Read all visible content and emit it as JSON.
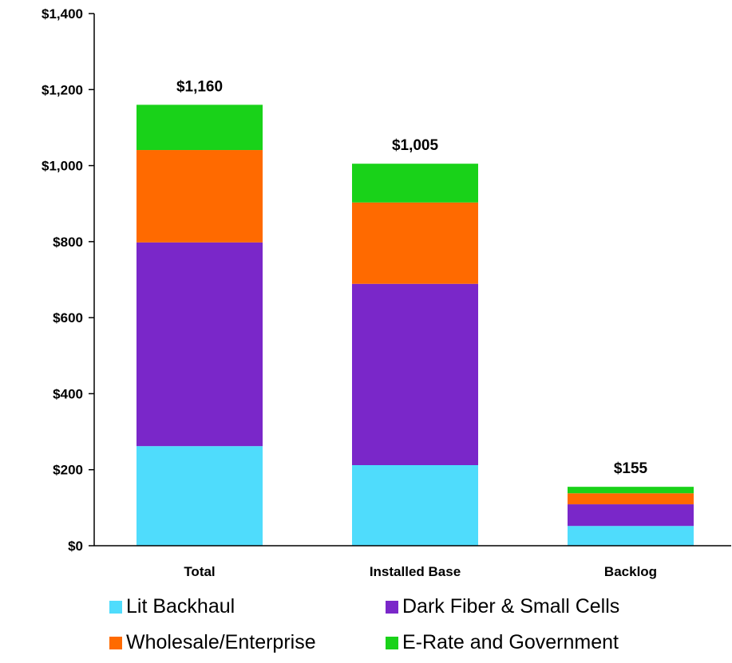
{
  "chart_data": {
    "type": "bar",
    "stacked": true,
    "categories": [
      "Total",
      "Installed Base",
      "Backlog"
    ],
    "series": [
      {
        "name": "Lit Backhaul",
        "color": "#4fdcfc",
        "values": [
          262,
          212,
          52
        ]
      },
      {
        "name": "Dark Fiber & Small Cells",
        "color": "#7a27c9",
        "values": [
          536,
          477,
          57
        ]
      },
      {
        "name": "Wholesale/Enterprise",
        "color": "#ff6a00",
        "values": [
          243,
          214,
          29
        ]
      },
      {
        "name": "E-Rate and Government",
        "color": "#19d219",
        "values": [
          119,
          102,
          17
        ]
      }
    ],
    "totals": [
      1160,
      1005,
      155
    ],
    "total_labels": [
      "$1,160",
      "$1,005",
      "$155"
    ],
    "y_ticks": [
      0,
      200,
      400,
      600,
      800,
      1000,
      1200,
      1400
    ],
    "y_tick_labels": [
      "$0",
      "$200",
      "$400",
      "$600",
      "$800",
      "$1,000",
      "$1,200",
      "$1,400"
    ],
    "ylim": [
      0,
      1400
    ],
    "grid": false,
    "legend_position": "bottom"
  }
}
